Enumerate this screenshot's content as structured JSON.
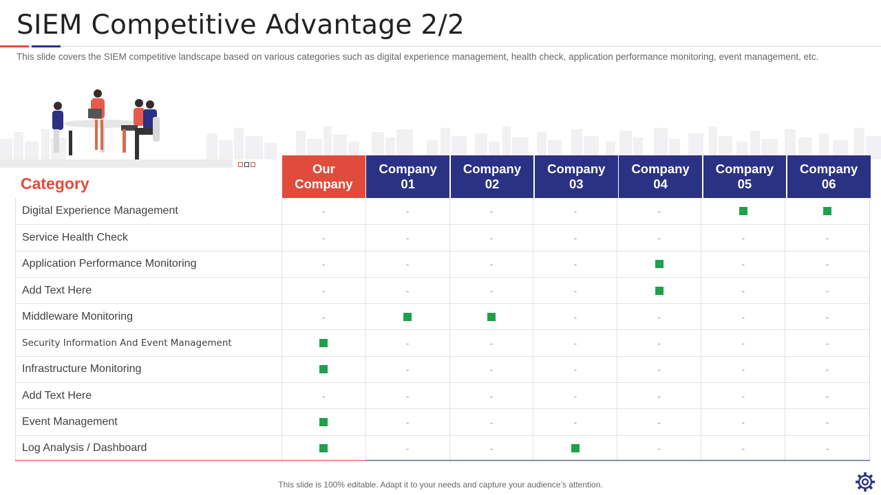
{
  "page": {
    "title": "SIEM Competitive Advantage 2/2",
    "subtitle": "This slide covers the SIEM competitive landscape based on various categories such as digital experience management, health check, application performance monitoring, event management, etc.",
    "footer": "This slide is 100% editable. Adapt it to your needs and capture your audience’s attention.",
    "icons": [
      "people-meeting-illustration",
      "city-skyline-illustration",
      "gear-icon"
    ]
  },
  "colors": {
    "accent_red": "#e14b3b",
    "accent_blue": "#2b3183",
    "check_green": "#1fa04a"
  },
  "table": {
    "category_header": "Category",
    "columns": [
      {
        "line1": "Our",
        "line2": "Company",
        "highlight": true
      },
      {
        "line1": "Company",
        "line2": "01"
      },
      {
        "line1": "Company",
        "line2": "02"
      },
      {
        "line1": "Company",
        "line2": "03"
      },
      {
        "line1": "Company",
        "line2": "04"
      },
      {
        "line1": "Company",
        "line2": "05"
      },
      {
        "line1": "Company",
        "line2": "06"
      }
    ],
    "empty_symbol": "-",
    "rows": [
      {
        "category": "Digital Experience Management",
        "marks": [
          false,
          false,
          false,
          false,
          false,
          true,
          true
        ]
      },
      {
        "category": "Service Health Check",
        "marks": [
          false,
          false,
          false,
          false,
          false,
          false,
          false
        ]
      },
      {
        "category": "Application Performance Monitoring",
        "marks": [
          false,
          false,
          false,
          false,
          true,
          false,
          false
        ]
      },
      {
        "category": "Add Text Here",
        "marks": [
          false,
          false,
          false,
          false,
          true,
          false,
          false
        ]
      },
      {
        "category": "Middleware Monitoring",
        "marks": [
          false,
          true,
          true,
          false,
          false,
          false,
          false
        ]
      },
      {
        "category": "Security Information And Event Management",
        "small": true,
        "marks": [
          true,
          false,
          false,
          false,
          false,
          false,
          false
        ]
      },
      {
        "category": "Infrastructure  Monitoring",
        "marks": [
          true,
          false,
          false,
          false,
          false,
          false,
          false
        ]
      },
      {
        "category": "Add Text Here",
        "marks": [
          false,
          false,
          false,
          false,
          false,
          false,
          false
        ]
      },
      {
        "category": "Event Management",
        "marks": [
          true,
          false,
          false,
          false,
          false,
          false,
          false
        ]
      },
      {
        "category": "Log Analysis / Dashboard",
        "marks": [
          true,
          false,
          false,
          true,
          false,
          false,
          false
        ]
      }
    ]
  }
}
